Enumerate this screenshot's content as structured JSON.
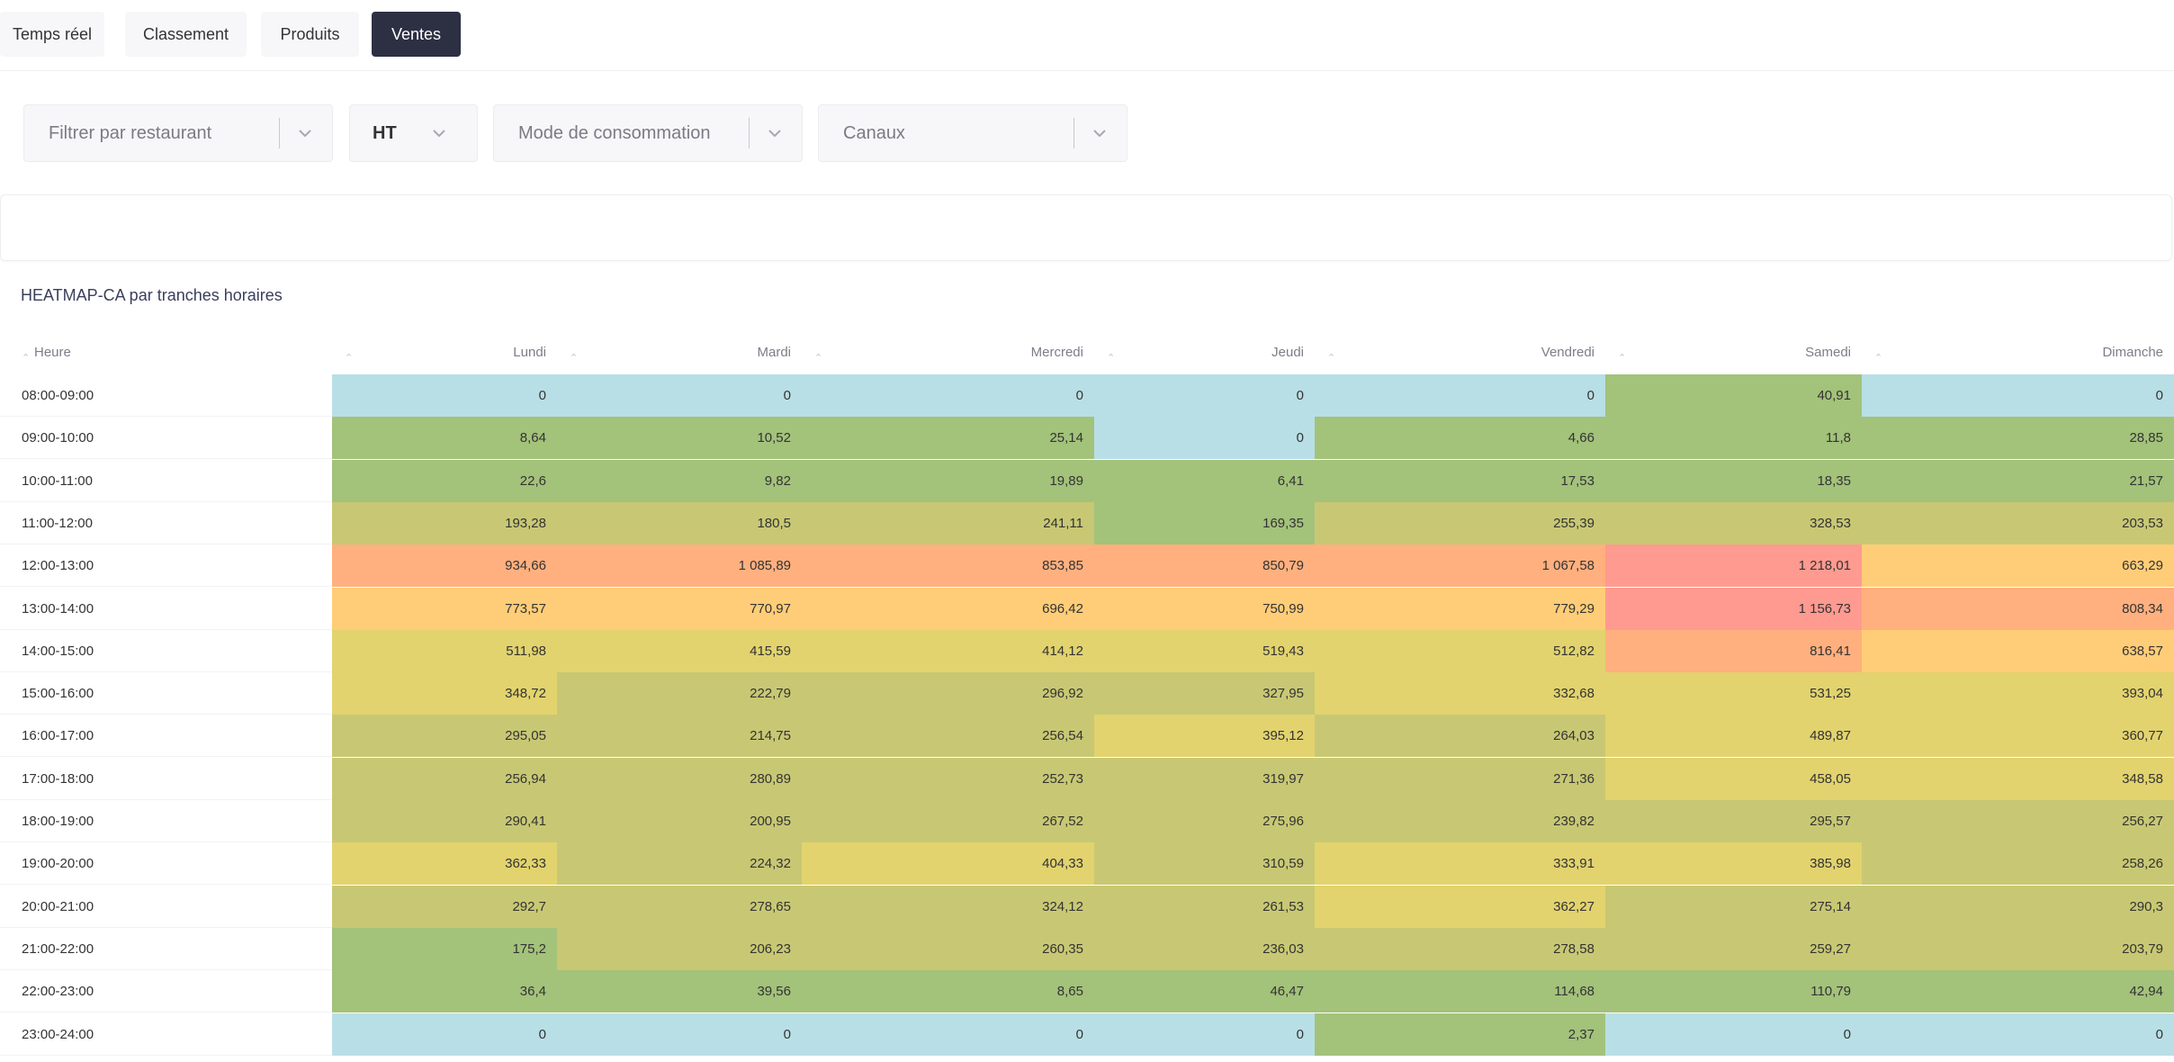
{
  "tabs": [
    {
      "label": "Temps réel",
      "active": false
    },
    {
      "label": "Classement",
      "active": false
    },
    {
      "label": "Produits",
      "active": false
    },
    {
      "label": "Ventes",
      "active": true
    }
  ],
  "filters": {
    "restaurant": {
      "placeholder": "Filtrer par restaurant",
      "icon": "chevron-down-icon"
    },
    "tax": {
      "value": "HT",
      "icon": "chevron-down-icon"
    },
    "consumption_mode": {
      "placeholder": "Mode de consommation",
      "icon": "chevron-down-icon"
    },
    "channels": {
      "placeholder": "Canaux",
      "icon": "chevron-down-icon"
    }
  },
  "heatmap": {
    "title": "HEATMAP-CA par tranches horaires",
    "row_header": "Heure",
    "sort_icon": "sort-caret-icon"
  },
  "chart_data": {
    "type": "heatmap",
    "title": "HEATMAP-CA par tranches horaires",
    "columns": [
      "Lundi",
      "Mardi",
      "Mercredi",
      "Jeudi",
      "Vendredi",
      "Samedi",
      "Dimanche"
    ],
    "rows": [
      "08:00-09:00",
      "09:00-10:00",
      "10:00-11:00",
      "11:00-12:00",
      "12:00-13:00",
      "13:00-14:00",
      "14:00-15:00",
      "15:00-16:00",
      "16:00-17:00",
      "17:00-18:00",
      "18:00-19:00",
      "19:00-20:00",
      "20:00-21:00",
      "21:00-22:00",
      "22:00-23:00",
      "23:00-24:00"
    ],
    "values": [
      [
        0,
        0,
        0,
        0,
        0,
        40.91,
        0
      ],
      [
        8.64,
        10.52,
        25.14,
        0,
        4.66,
        11.8,
        28.85
      ],
      [
        22.6,
        9.82,
        19.89,
        6.41,
        17.53,
        18.35,
        21.57
      ],
      [
        193.28,
        180.5,
        241.11,
        169.35,
        255.39,
        328.53,
        203.53
      ],
      [
        934.66,
        1085.89,
        853.85,
        850.79,
        1067.58,
        1218.01,
        663.29
      ],
      [
        773.57,
        770.97,
        696.42,
        750.99,
        779.29,
        1156.73,
        808.34
      ],
      [
        511.98,
        415.59,
        414.12,
        519.43,
        512.82,
        816.41,
        638.57
      ],
      [
        348.72,
        222.79,
        296.92,
        327.95,
        332.68,
        531.25,
        393.04
      ],
      [
        295.05,
        214.75,
        256.54,
        395.12,
        264.03,
        489.87,
        360.77
      ],
      [
        256.94,
        280.89,
        252.73,
        319.97,
        271.36,
        458.05,
        348.58
      ],
      [
        290.41,
        200.95,
        267.52,
        275.96,
        239.82,
        295.57,
        256.27
      ],
      [
        362.33,
        224.32,
        404.33,
        310.59,
        333.91,
        385.98,
        258.26
      ],
      [
        292.7,
        278.65,
        324.12,
        261.53,
        362.27,
        275.14,
        290.3
      ],
      [
        175.2,
        206.23,
        260.35,
        236.03,
        278.58,
        259.27,
        203.79
      ],
      [
        36.4,
        39.56,
        8.65,
        46.47,
        114.68,
        110.79,
        42.94
      ],
      [
        0,
        0,
        0,
        0,
        2.37,
        0,
        0
      ]
    ],
    "display_values": [
      [
        "0",
        "0",
        "0",
        "0",
        "0",
        "40,91",
        "0"
      ],
      [
        "8,64",
        "10,52",
        "25,14",
        "0",
        "4,66",
        "11,8",
        "28,85"
      ],
      [
        "22,6",
        "9,82",
        "19,89",
        "6,41",
        "17,53",
        "18,35",
        "21,57"
      ],
      [
        "193,28",
        "180,5",
        "241,11",
        "169,35",
        "255,39",
        "328,53",
        "203,53"
      ],
      [
        "934,66",
        "1 085,89",
        "853,85",
        "850,79",
        "1 067,58",
        "1 218,01",
        "663,29"
      ],
      [
        "773,57",
        "770,97",
        "696,42",
        "750,99",
        "779,29",
        "1 156,73",
        "808,34"
      ],
      [
        "511,98",
        "415,59",
        "414,12",
        "519,43",
        "512,82",
        "816,41",
        "638,57"
      ],
      [
        "348,72",
        "222,79",
        "296,92",
        "327,95",
        "332,68",
        "531,25",
        "393,04"
      ],
      [
        "295,05",
        "214,75",
        "256,54",
        "395,12",
        "264,03",
        "489,87",
        "360,77"
      ],
      [
        "256,94",
        "280,89",
        "252,73",
        "319,97",
        "271,36",
        "458,05",
        "348,58"
      ],
      [
        "290,41",
        "200,95",
        "267,52",
        "275,96",
        "239,82",
        "295,57",
        "256,27"
      ],
      [
        "362,33",
        "224,32",
        "404,33",
        "310,59",
        "333,91",
        "385,98",
        "258,26"
      ],
      [
        "292,7",
        "278,65",
        "324,12",
        "261,53",
        "362,27",
        "275,14",
        "290,3"
      ],
      [
        "175,2",
        "206,23",
        "260,35",
        "236,03",
        "278,58",
        "259,27",
        "203,79"
      ],
      [
        "36,4",
        "39,56",
        "8,65",
        "46,47",
        "114,68",
        "110,79",
        "42,94"
      ],
      [
        "0",
        "0",
        "0",
        "0",
        "2,37",
        "0",
        "0"
      ]
    ],
    "colors": {
      "zero": "#b8dfe6",
      "low": "#a3c27a",
      "mid": "#c8c874",
      "mid_high": "#e2d36e",
      "high": "#ffcd77",
      "very_high": "#ffb07e",
      "max": "#ff9a90"
    }
  }
}
